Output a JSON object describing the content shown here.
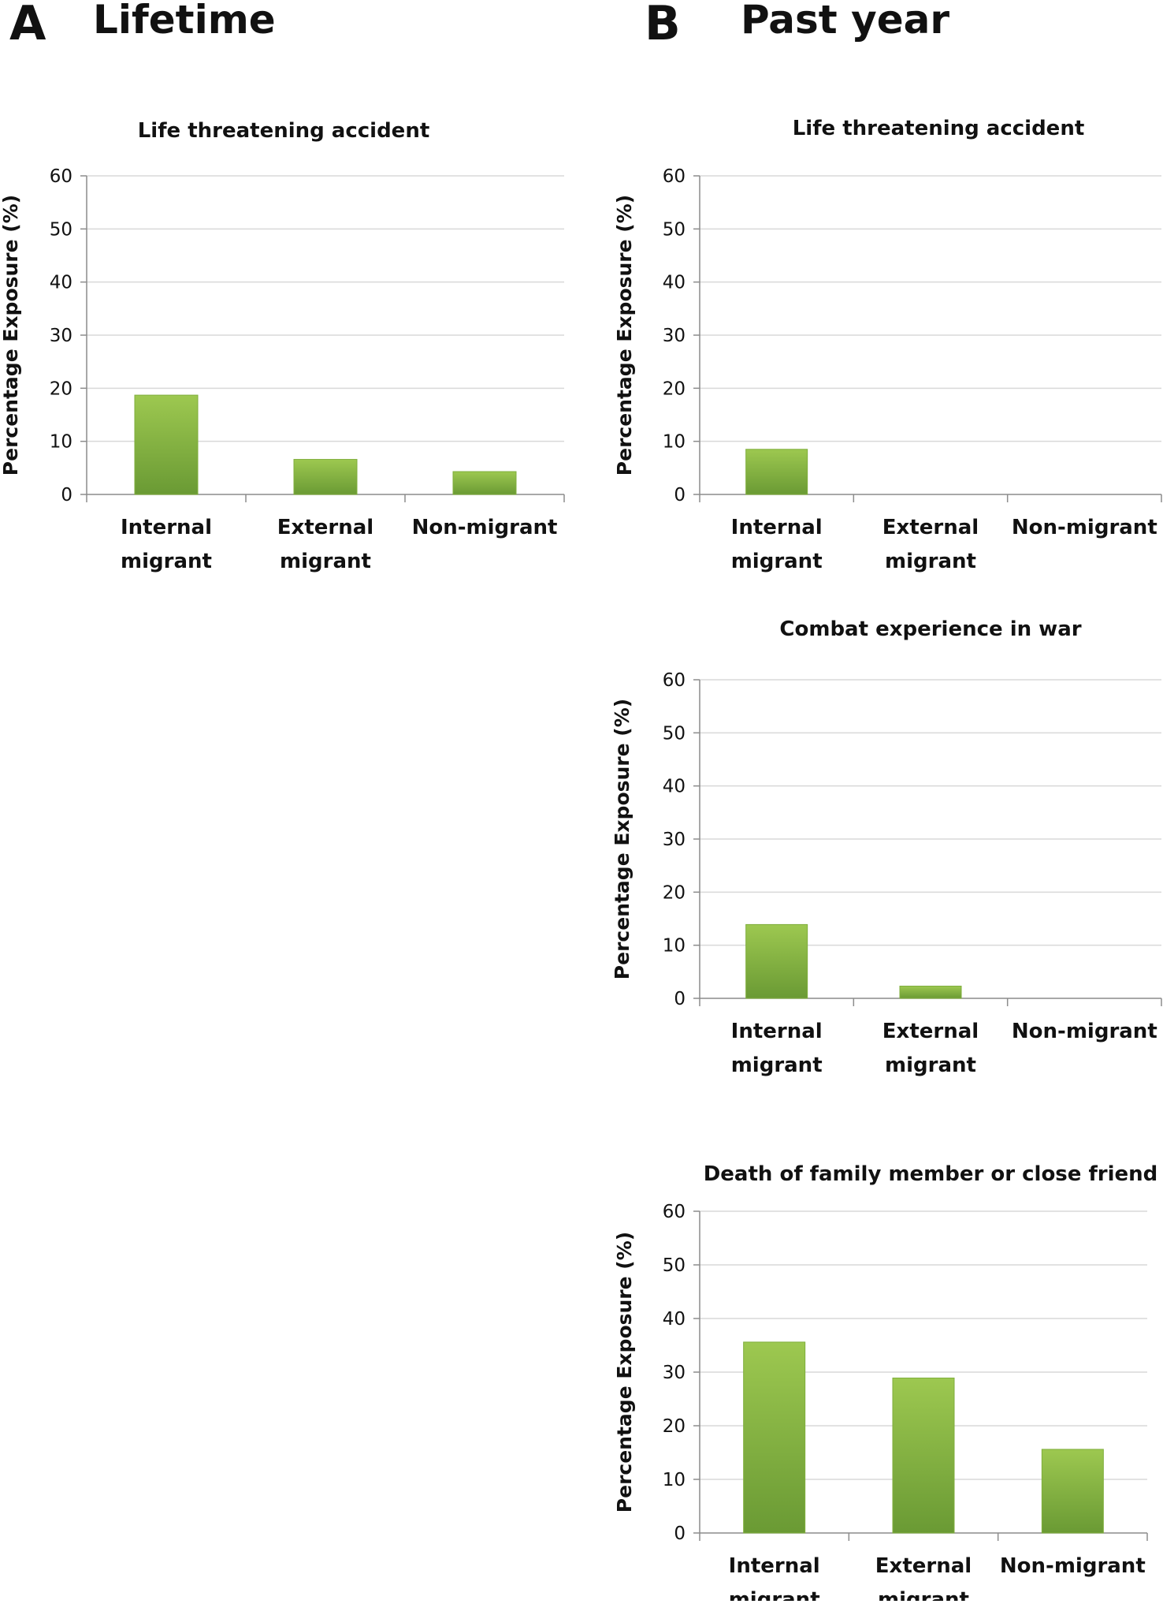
{
  "panels": {
    "A": {
      "letter": "A",
      "title": "Lifetime"
    },
    "B": {
      "letter": "B",
      "title": "Past year"
    }
  },
  "colors": {
    "bar_top": "#9dc850",
    "bar_bottom": "#6a9a34",
    "bar_edge": "#7fae3c",
    "grid": "#d9d9d9",
    "axis": "#8c8c8c"
  },
  "chart_data": [
    {
      "id": "A1",
      "panel": "A",
      "type": "bar",
      "title": "Life threatening accident",
      "ylabel": "Percentage Exposure (%)",
      "xlabel": "",
      "ylim": [
        0,
        60
      ],
      "yticks": [
        0,
        10,
        20,
        30,
        40,
        50,
        60
      ],
      "grid": true,
      "categories": [
        [
          "Internal",
          "migrant"
        ],
        [
          "External",
          "migrant"
        ],
        [
          "Non-migrant"
        ]
      ],
      "values": [
        18.7,
        6.6,
        4.3
      ]
    },
    {
      "id": "B1",
      "panel": "B",
      "type": "bar",
      "title": "Life threatening accident",
      "ylabel": "Percentage Exposure (%)",
      "xlabel": "",
      "ylim": [
        0,
        60
      ],
      "yticks": [
        0,
        10,
        20,
        30,
        40,
        50,
        60
      ],
      "grid": true,
      "categories": [
        [
          "Internal",
          "migrant"
        ],
        [
          "External",
          "migrant"
        ],
        [
          "Non-migrant"
        ]
      ],
      "values": [
        8.5,
        0,
        0
      ]
    },
    {
      "id": "B2",
      "panel": "B",
      "type": "bar",
      "title": "Combat experience in war",
      "ylabel": "Percentage Exposure (%)",
      "xlabel": "",
      "ylim": [
        0,
        60
      ],
      "yticks": [
        0,
        10,
        20,
        30,
        40,
        50,
        60
      ],
      "grid": true,
      "categories": [
        [
          "Internal",
          "migrant"
        ],
        [
          "External",
          "migrant"
        ],
        [
          "Non-migrant"
        ]
      ],
      "values": [
        13.9,
        2.3,
        0
      ]
    },
    {
      "id": "B3",
      "panel": "B",
      "type": "bar",
      "title": "Death of family member or close friend",
      "ylabel": "Percentage Exposure (%)",
      "xlabel": "",
      "ylim": [
        0,
        60
      ],
      "yticks": [
        0,
        10,
        20,
        30,
        40,
        50,
        60
      ],
      "grid": true,
      "categories": [
        [
          "Internal",
          "migrant"
        ],
        [
          "External",
          "migrant"
        ],
        [
          "Non-migrant"
        ]
      ],
      "values": [
        35.6,
        28.9,
        15.6
      ]
    }
  ]
}
